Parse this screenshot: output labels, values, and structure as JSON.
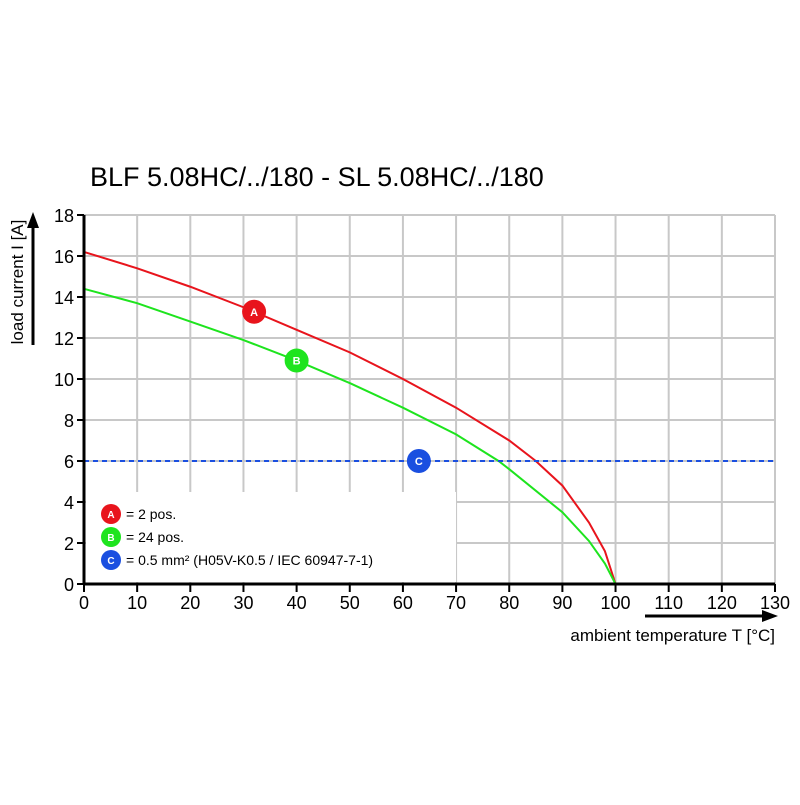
{
  "chart_data": {
    "type": "line",
    "title": "BLF 5.08HC/../180 - SL 5.08HC/../180",
    "xlabel": "ambient temperature T [°C]",
    "ylabel": "load current I [A]",
    "xlim": [
      0,
      130
    ],
    "ylim": [
      0,
      18
    ],
    "xticks": [
      0,
      10,
      20,
      30,
      40,
      50,
      60,
      70,
      80,
      90,
      100,
      110,
      120,
      130
    ],
    "yticks": [
      0,
      2,
      4,
      6,
      8,
      10,
      12,
      14,
      16,
      18
    ],
    "grid": true,
    "legend_position": "bottom-left",
    "series": [
      {
        "marker": "A",
        "name": "= 2 pos.",
        "color": "#e8141c",
        "x": [
          0,
          10,
          20,
          30,
          40,
          50,
          60,
          70,
          80,
          85,
          90,
          95,
          98,
          100
        ],
        "y": [
          16.2,
          15.4,
          14.5,
          13.5,
          12.4,
          11.3,
          10.0,
          8.6,
          7.0,
          6.0,
          4.8,
          3.0,
          1.6,
          0
        ],
        "label_x": 32
      },
      {
        "marker": "B",
        "name": "= 24 pos.",
        "color": "#1ee41e",
        "x": [
          0,
          10,
          20,
          30,
          40,
          50,
          60,
          70,
          78,
          80,
          90,
          95,
          98,
          100
        ],
        "y": [
          14.4,
          13.7,
          12.8,
          11.9,
          10.9,
          9.8,
          8.6,
          7.3,
          6.0,
          5.6,
          3.5,
          2.1,
          1.0,
          0
        ],
        "label_x": 40
      },
      {
        "marker": "C",
        "name": "= 0.5 mm² (H05V-K0.5 / IEC 60947-7-1)",
        "color": "#1a4fe0",
        "x": [
          0,
          130
        ],
        "y": [
          6,
          6
        ],
        "dashed": true,
        "label_x": 63
      }
    ]
  }
}
